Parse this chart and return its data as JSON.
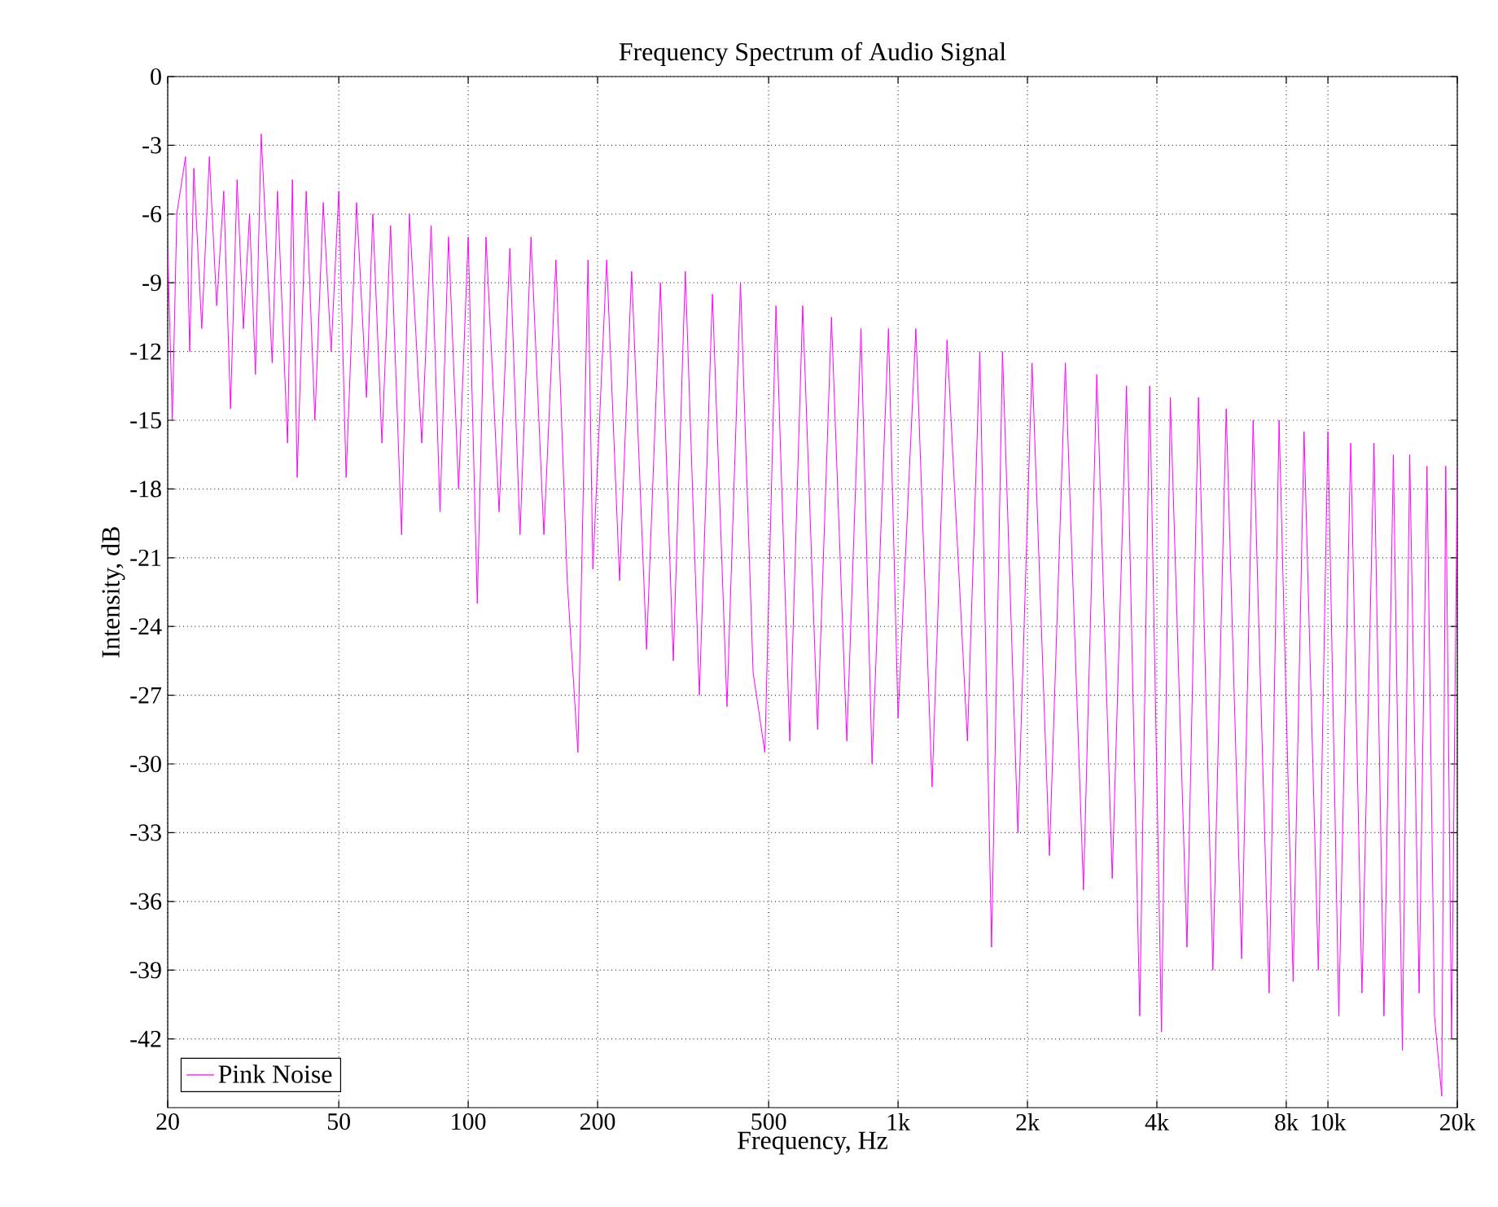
{
  "chart_data": {
    "type": "line",
    "title": "Frequency Spectrum of Audio Signal",
    "xlabel": "Frequency, Hz",
    "ylabel": "Intensity, dB",
    "log": "x",
    "grid": true,
    "legend": "bottom left",
    "marker": "none",
    "line_style": "solid",
    "xlim": [
      20,
      20000
    ],
    "ylim": [
      -45,
      0
    ],
    "xticks": [
      20,
      50,
      100,
      200,
      500,
      {
        "value": 1000,
        "label": "1k"
      },
      {
        "value": 2000,
        "label": "2k"
      },
      {
        "value": 4000,
        "label": "4k"
      },
      {
        "value": 8000,
        "label": "8k"
      },
      {
        "value": 10000,
        "label": "10k"
      },
      {
        "value": 20000,
        "label": "20k"
      }
    ],
    "yticks": [
      0,
      -3,
      -6,
      -9,
      -12,
      -15,
      -18,
      -21,
      -24,
      -27,
      -30,
      -33,
      -36,
      -39,
      -42
    ],
    "series": [
      {
        "name": "Pink Noise",
        "color": "#ff00ff",
        "x": [
          20,
          20.5,
          21,
          22,
          22.5,
          23,
          24,
          25,
          26,
          27,
          28,
          29,
          30,
          31,
          32,
          33,
          35,
          36,
          38,
          39,
          40,
          42,
          44,
          46,
          48,
          50,
          52,
          55,
          58,
          60,
          63,
          66,
          70,
          73,
          78,
          82,
          86,
          90,
          95,
          100,
          105,
          110,
          118,
          125,
          132,
          140,
          150,
          160,
          170,
          180,
          190,
          195,
          210,
          225,
          240,
          260,
          280,
          300,
          320,
          345,
          370,
          400,
          430,
          460,
          490,
          520,
          560,
          600,
          650,
          700,
          760,
          820,
          870,
          950,
          1000,
          1100,
          1200,
          1300,
          1450,
          1550,
          1650,
          1750,
          1900,
          2050,
          2250,
          2450,
          2700,
          2900,
          3150,
          3400,
          3650,
          3850,
          4100,
          4300,
          4700,
          5000,
          5400,
          5800,
          6300,
          6700,
          7300,
          7700,
          8300,
          8800,
          9500,
          10000,
          10600,
          11300,
          12000,
          12800,
          13500,
          14200,
          14900,
          15500,
          16300,
          17000,
          17700,
          18400,
          18800,
          19400,
          20000
        ],
        "values": [
          -7.5,
          -15,
          -6,
          -3.5,
          -12,
          -4,
          -11,
          -3.5,
          -10,
          -5,
          -14.5,
          -4.5,
          -11,
          -6,
          -13,
          -2.5,
          -12.5,
          -5,
          -16,
          -4.5,
          -17.5,
          -5,
          -15,
          -5.5,
          -12,
          -5,
          -17.5,
          -5.5,
          -14,
          -6,
          -16,
          -6.5,
          -20,
          -6,
          -16,
          -6.5,
          -19,
          -7,
          -18,
          -7,
          -23,
          -7,
          -19,
          -7.5,
          -20,
          -7,
          -20,
          -8,
          -22,
          -29.5,
          -8,
          -21.5,
          -8,
          -22,
          -8.5,
          -25,
          -9,
          -25.5,
          -8.5,
          -27,
          -9.5,
          -27.5,
          -9,
          -26,
          -29.5,
          -10,
          -29,
          -10,
          -28.5,
          -10.5,
          -29,
          -11,
          -30,
          -11,
          -28,
          -11,
          -31,
          -11.5,
          -29,
          -12,
          -38,
          -12,
          -33,
          -12.5,
          -34,
          -12.5,
          -35.5,
          -13,
          -35,
          -13.5,
          -41,
          -13.5,
          -41.7,
          -14,
          -38,
          -14,
          -39,
          -14.5,
          -38.5,
          -15,
          -40,
          -15,
          -39.5,
          -15.5,
          -39,
          -15.5,
          -41,
          -16,
          -40,
          -16,
          -41,
          -16.5,
          -42.5,
          -16.5,
          -40,
          -17,
          -41,
          -44.5,
          -17,
          -42,
          -17
        ]
      }
    ]
  }
}
